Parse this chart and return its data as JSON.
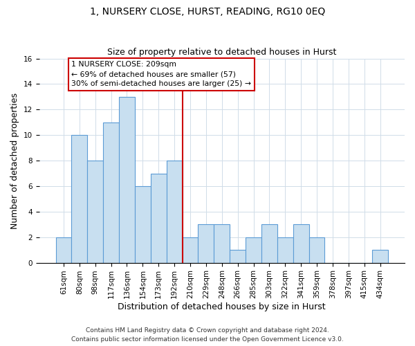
{
  "title": "1, NURSERY CLOSE, HURST, READING, RG10 0EQ",
  "subtitle": "Size of property relative to detached houses in Hurst",
  "xlabel": "Distribution of detached houses by size in Hurst",
  "ylabel": "Number of detached properties",
  "bar_labels": [
    "61sqm",
    "80sqm",
    "98sqm",
    "117sqm",
    "136sqm",
    "154sqm",
    "173sqm",
    "192sqm",
    "210sqm",
    "229sqm",
    "248sqm",
    "266sqm",
    "285sqm",
    "303sqm",
    "322sqm",
    "341sqm",
    "359sqm",
    "378sqm",
    "397sqm",
    "415sqm",
    "434sqm"
  ],
  "bar_values": [
    2,
    10,
    8,
    11,
    13,
    6,
    7,
    8,
    2,
    3,
    3,
    1,
    2,
    3,
    2,
    3,
    2,
    0,
    0,
    0,
    1
  ],
  "bar_color": "#c8dff0",
  "bar_edge_color": "#5b9bd5",
  "highlight_line_index": 8,
  "highlight_line_color": "#cc0000",
  "box_text_line1": "1 NURSERY CLOSE: 209sqm",
  "box_text_line2": "← 69% of detached houses are smaller (57)",
  "box_text_line3": "30% of semi-detached houses are larger (25) →",
  "box_color": "white",
  "box_edge_color": "#cc0000",
  "ylim": [
    0,
    16
  ],
  "yticks": [
    0,
    2,
    4,
    6,
    8,
    10,
    12,
    14,
    16
  ],
  "footer1": "Contains HM Land Registry data © Crown copyright and database right 2024.",
  "footer2": "Contains public sector information licensed under the Open Government Licence v3.0.",
  "title_fontsize": 10,
  "subtitle_fontsize": 9,
  "axis_label_fontsize": 9,
  "tick_fontsize": 7.5,
  "footer_fontsize": 6.5,
  "grid_color": "#d0dce8",
  "figsize": [
    6.0,
    5.0
  ],
  "dpi": 100
}
